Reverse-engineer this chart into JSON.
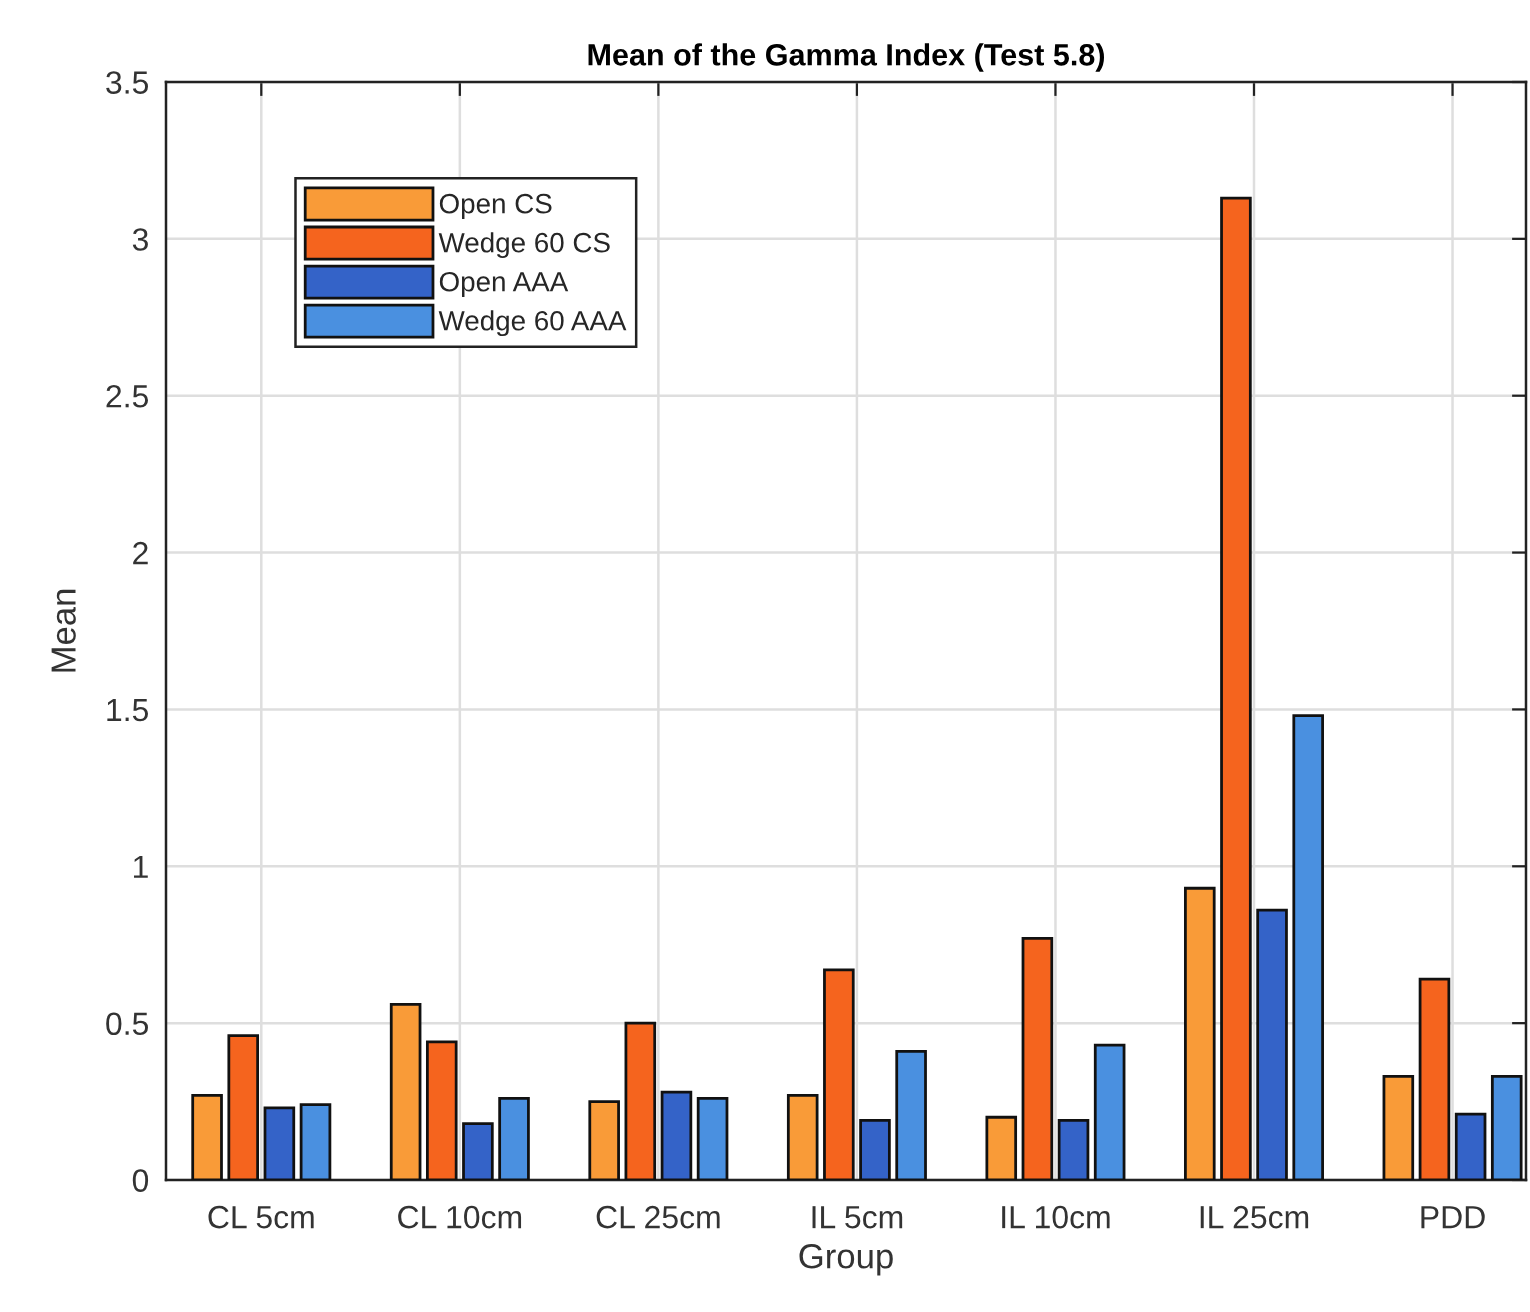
{
  "chart_data": {
    "type": "bar",
    "title": "Mean of the Gamma Index (Test 5.8)",
    "xlabel": "Group",
    "ylabel": "Mean",
    "categories": [
      "CL 5cm",
      "CL 10cm",
      "CL 25cm",
      "IL 5cm",
      "IL 10cm",
      "IL 25cm",
      "PDD"
    ],
    "series": [
      {
        "name": "Open CS",
        "color": "#f99b38",
        "values": [
          0.27,
          0.56,
          0.25,
          0.27,
          0.2,
          0.93,
          0.33
        ]
      },
      {
        "name": "Wedge 60 CS",
        "color": "#f5641e",
        "values": [
          0.46,
          0.44,
          0.5,
          0.67,
          0.77,
          3.13,
          0.64
        ]
      },
      {
        "name": "Open AAA",
        "color": "#3463c8",
        "values": [
          0.23,
          0.18,
          0.28,
          0.19,
          0.19,
          0.86,
          0.21
        ]
      },
      {
        "name": "Wedge 60 AAA",
        "color": "#4a90e0",
        "values": [
          0.24,
          0.26,
          0.26,
          0.41,
          0.43,
          1.48,
          0.33
        ]
      }
    ],
    "ylim": [
      0,
      3.5
    ],
    "yticks": [
      0,
      0.5,
      1,
      1.5,
      2,
      2.5,
      3,
      3.5
    ],
    "grid": true,
    "legend": "top left"
  }
}
